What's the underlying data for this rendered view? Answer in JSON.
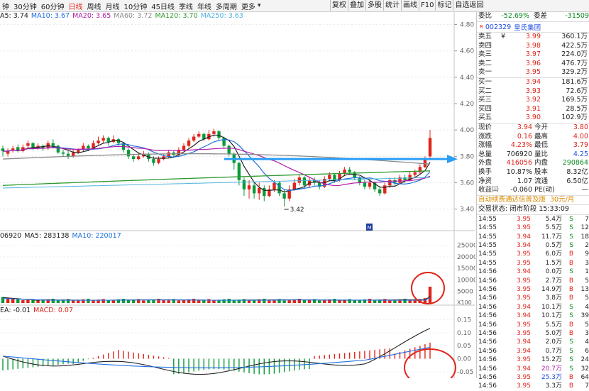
{
  "toolbar": {
    "periods": [
      {
        "label": "钟",
        "active": false
      },
      {
        "label": "30分钟",
        "active": false
      },
      {
        "label": "60分钟",
        "active": false
      },
      {
        "label": "日线",
        "active": true
      },
      {
        "label": "周线",
        "active": false
      },
      {
        "label": "月线",
        "active": false
      },
      {
        "label": "10分钟",
        "active": false
      },
      {
        "label": "45日线",
        "active": false
      },
      {
        "label": "季线",
        "active": false
      },
      {
        "label": "年线",
        "active": false
      },
      {
        "label": "多周期",
        "active": false
      },
      {
        "label": "更多",
        "active": false
      }
    ],
    "more_arrow": "▾",
    "buttons": [
      "复权",
      "叠加",
      "多股",
      "统计",
      "画线",
      "F10",
      "标记",
      "自选返回"
    ]
  },
  "ma_legend": [
    {
      "label": "A5: 3.74",
      "color": "#222222"
    },
    {
      "label": "MA10: 3.67",
      "color": "#1f6fe0"
    },
    {
      "label": "MA20: 3.65",
      "color": "#b01fa8"
    },
    {
      "label": "MA60: 3.72",
      "color": "#8a8a8a"
    },
    {
      "label": "MA120: 3.70",
      "color": "#2e9a2e"
    },
    {
      "label": "MA250: 3.63",
      "color": "#4fb3e0"
    }
  ],
  "vol_legend": [
    {
      "label": "06920",
      "color": "#222222"
    },
    {
      "label": "MA5: 283138",
      "color": "#222222"
    },
    {
      "label": "MA10: 220017",
      "color": "#1f6fe0"
    }
  ],
  "macd_legend": [
    {
      "label": "EA: -0.01",
      "color": "#222222"
    },
    {
      "label": "MACD: 0.07",
      "color": "#e0241a"
    }
  ],
  "price_axis": [
    "4.80",
    "4.60",
    "4.40",
    "4.20",
    "4.00",
    "3.80",
    "3.60",
    "3.40"
  ],
  "vol_axis": [
    "25000",
    "20000",
    "15000",
    "10000",
    "5000"
  ],
  "vol_unit": "X100",
  "macd_axis": [
    "0.15",
    "0.10",
    "0.05",
    "0.00",
    "-0.05"
  ],
  "low_marker": "3.42",
  "small_badge": "M",
  "quote": {
    "stock_code": "002329",
    "stock_name": "皇氏集团",
    "code_prefix": "R",
    "weibi_label": "委比",
    "weibi_value": "-52.69%",
    "weicha_label": "委差",
    "weicha_value": "-31509",
    "currency_symbol": "¥",
    "asks": [
      {
        "label": "卖五",
        "price": "3.99",
        "vol": "360.1万"
      },
      {
        "label": "卖四",
        "price": "3.98",
        "vol": "422.5万"
      },
      {
        "label": "卖三",
        "price": "3.97",
        "vol": "224.0万"
      },
      {
        "label": "卖二",
        "price": "3.96",
        "vol": "476.7万"
      },
      {
        "label": "卖一",
        "price": "3.95",
        "vol": "329.2万"
      }
    ],
    "bids": [
      {
        "label": "买一",
        "price": "3.94",
        "vol": "181.6万"
      },
      {
        "label": "买二",
        "price": "3.93",
        "vol": "72.6万"
      },
      {
        "label": "买三",
        "price": "3.92",
        "vol": "169.5万"
      },
      {
        "label": "买四",
        "price": "3.91",
        "vol": "28.5万"
      },
      {
        "label": "买五",
        "price": "3.90",
        "vol": "102.9万"
      }
    ],
    "stats": [
      {
        "l1": "现价",
        "v1": "3.94",
        "c1": "red",
        "l2": "今开",
        "v2": "3.80",
        "c2": "red"
      },
      {
        "l1": "涨跌",
        "v1": "0.16",
        "c1": "red",
        "l2": "最高",
        "v2": "4.00",
        "c2": "red"
      },
      {
        "l1": "涨幅",
        "v1": "4.23%",
        "c1": "red",
        "l2": "最低",
        "v2": "3.79",
        "c2": "red"
      },
      {
        "l1": "总量",
        "v1": "706920",
        "c1": "",
        "l2": "量比",
        "v2": "4.25",
        "c2": "blue"
      },
      {
        "l1": "外盘",
        "v1": "416056",
        "c1": "red",
        "l2": "内盘",
        "v2": "290864",
        "c2": "green"
      },
      {
        "l1": "换手",
        "v1": "10.87%",
        "c1": "",
        "l2": "股本",
        "v2": "8.32亿",
        "c2": ""
      },
      {
        "l1": "净资",
        "v1": "1.07",
        "c1": "",
        "l2": "流通",
        "v2": "6.50亿",
        "c2": ""
      },
      {
        "l1": "收益㈢",
        "v1": "-0.060",
        "c1": "",
        "l2": "PE(动)",
        "v2": "—",
        "c2": ""
      }
    ],
    "promo_text": "自动续费通达信普及版",
    "promo_price": "30元/月",
    "trade_status": "交易状态: 闭市阶段 15:33:09"
  },
  "ticks": [
    {
      "t": "14:55",
      "p": "3.95",
      "v": "5.4万",
      "s": "S",
      "n": "7"
    },
    {
      "t": "14:55",
      "p": "3.95",
      "v": "5.5万",
      "s": "S",
      "n": "12"
    },
    {
      "t": "14:55",
      "p": "3.94",
      "v": "11.7万",
      "s": "S",
      "n": "18"
    },
    {
      "t": "14:55",
      "p": "3.94",
      "v": "0.5万",
      "s": "S",
      "n": "2"
    },
    {
      "t": "14:55",
      "p": "3.95",
      "v": "6.0万",
      "s": "B",
      "n": "9"
    },
    {
      "t": "14:55",
      "p": "3.95",
      "v": "1.5万",
      "s": "B",
      "n": "3"
    },
    {
      "t": "14:56",
      "p": "3.94",
      "v": "0.0万",
      "s": "S",
      "n": "1"
    },
    {
      "t": "14:56",
      "p": "3.95",
      "v": "2.7万",
      "s": "B",
      "n": "5"
    },
    {
      "t": "14:56",
      "p": "3.95",
      "v": "14.9万",
      "s": "B",
      "n": "13"
    },
    {
      "t": "14:56",
      "p": "3.95",
      "v": "3.8万",
      "s": "B",
      "n": "5"
    },
    {
      "t": "14:56",
      "p": "3.94",
      "v": "10.1万",
      "s": "S",
      "n": "4"
    },
    {
      "t": "14:56",
      "p": "3.94",
      "v": "10.1万",
      "s": "S",
      "n": "39"
    },
    {
      "t": "14:56",
      "p": "3.95",
      "v": "5.5万",
      "s": "B",
      "n": "5"
    },
    {
      "t": "14:56",
      "p": "3.95",
      "v": "5.0万",
      "s": "B",
      "n": "3"
    },
    {
      "t": "14:56",
      "p": "3.94",
      "v": "2.0万",
      "s": "S",
      "n": "4"
    },
    {
      "t": "14:56",
      "p": "3.94",
      "v": "0.7万",
      "s": "S",
      "n": "6"
    },
    {
      "t": "14:56",
      "p": "3.95",
      "v": "15.2万",
      "s": "S",
      "n": "24"
    },
    {
      "t": "14:56",
      "p": "3.94",
      "v": "20.7万",
      "s": "S",
      "n": "32"
    },
    {
      "t": "14:56",
      "p": "3.95",
      "v": "25.3万",
      "s": "B",
      "n": "64"
    },
    {
      "t": "14:56",
      "p": "3.95",
      "v": "3.3万",
      "s": "B",
      "n": "7"
    }
  ],
  "colors": {
    "up": "#e0241a",
    "down": "#0a9a3a",
    "arrow": "#2a9df4",
    "circle": "#e0241a"
  }
}
